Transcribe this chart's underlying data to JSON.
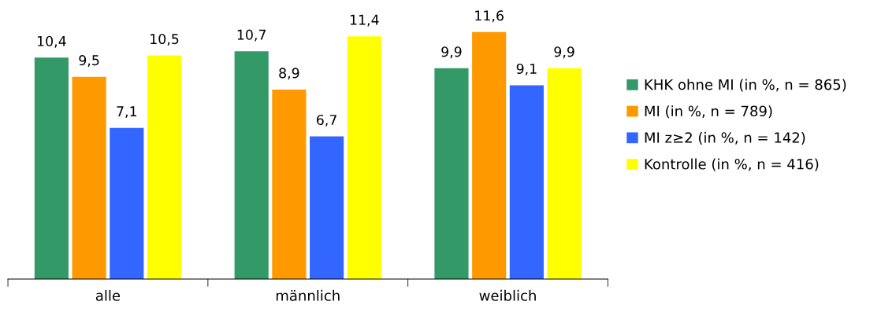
{
  "chart_data": {
    "type": "bar",
    "categories": [
      "alle",
      "männlich",
      "weiblich"
    ],
    "series": [
      {
        "name": "KHK ohne MI (in %, n = 865)",
        "color": "#339966",
        "values": [
          10.4,
          10.7,
          9.9
        ],
        "value_labels": [
          "10,4",
          "10,7",
          "9,9"
        ]
      },
      {
        "name": "MI (in %, n = 789)",
        "color": "#ff9900",
        "values": [
          9.5,
          8.9,
          11.6
        ],
        "value_labels": [
          "9,5",
          "8,9",
          "11,6"
        ]
      },
      {
        "name": "MI z≥2 (in %, n = 142)",
        "color": "#3366ff",
        "values": [
          7.1,
          6.7,
          9.1
        ],
        "value_labels": [
          "7,1",
          "6,7",
          "9,1"
        ]
      },
      {
        "name": "Kontrolle (in %, n = 416)",
        "color": "#ffff00",
        "values": [
          10.5,
          11.4,
          9.9
        ],
        "value_labels": [
          "10,5",
          "11,4",
          "9,9"
        ]
      }
    ],
    "tick_labels": "x",
    "grid": false,
    "legend": "right"
  }
}
